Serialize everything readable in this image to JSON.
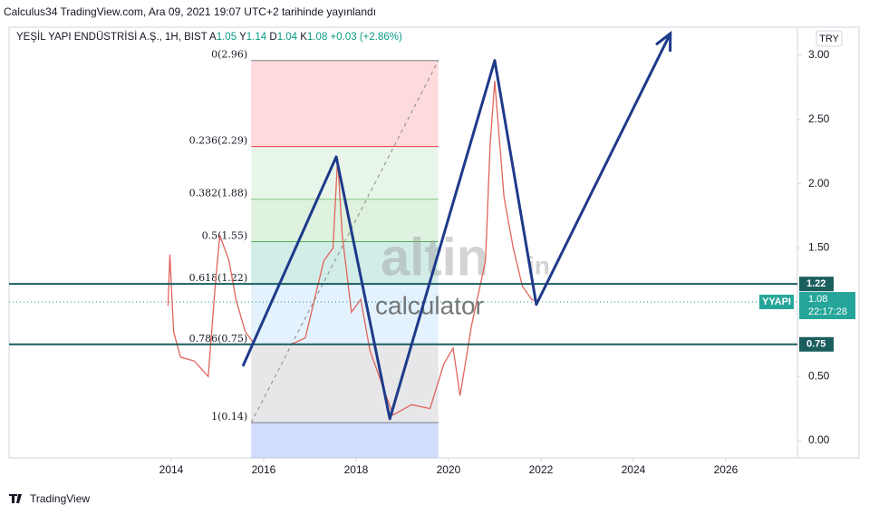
{
  "header": {
    "published": "Calculus34 TradingView.com, Ara 09, 2021 19:07 UTC+2 tarihinde yayınlandı",
    "footer": "TradingView"
  },
  "chart_data": {
    "type": "line",
    "symbol": "YEŞİL YAPI ENDÜSTRİSİ A.Ş., 1H, BIST",
    "ohlc": [
      {
        "key": "A",
        "value": 1.05
      },
      {
        "key": "Y",
        "value": 1.14
      },
      {
        "key": "D",
        "value": 1.04
      },
      {
        "key": "K",
        "value": 1.08
      }
    ],
    "change": "+0.03 (+2.86%)",
    "currency": "TRY",
    "countdown": "22:17:28",
    "series": [
      {
        "name": "YYAPI",
        "color": "#e0645c",
        "x": [
          2013.93,
          2013.97,
          2014.05,
          2014.2,
          2014.5,
          2014.8,
          2014.95,
          2015.05,
          2015.25,
          2015.4,
          2015.6,
          2015.8,
          2016.2,
          2016.6,
          2016.9,
          2017.1,
          2017.3,
          2017.5,
          2017.6,
          2017.7,
          2017.9,
          2018.1,
          2018.3,
          2018.5,
          2018.8,
          2019.2,
          2019.6,
          2019.9,
          2020.1,
          2020.25,
          2020.5,
          2020.8,
          2020.9,
          2021.0,
          2021.2,
          2021.4,
          2021.6,
          2021.8,
          2021.95
        ],
        "values": [
          1.05,
          1.45,
          0.85,
          0.65,
          0.62,
          0.5,
          1.2,
          1.6,
          1.4,
          1.1,
          0.85,
          0.75,
          0.75,
          0.75,
          0.8,
          1.1,
          1.4,
          1.5,
          2.2,
          1.6,
          1.0,
          1.1,
          0.7,
          0.5,
          0.2,
          0.28,
          0.25,
          0.6,
          0.72,
          0.35,
          0.9,
          1.4,
          2.3,
          2.8,
          1.9,
          1.5,
          1.2,
          1.1,
          1.08
        ]
      }
    ],
    "fib": {
      "x": [
        2015.73,
        2019.78
      ],
      "levels": [
        {
          "label": "0(2.96)",
          "value": 2.96,
          "color": "#787b86"
        },
        {
          "label": "0.236(2.29)",
          "value": 2.29,
          "color": "#f23645"
        },
        {
          "label": "0.382(1.88)",
          "value": 1.88,
          "color": "#81c784"
        },
        {
          "label": "0.5(1.55)",
          "value": 1.55,
          "color": "#4caf50"
        },
        {
          "label": "0.618(1.22)",
          "value": 1.22,
          "color": "#089981"
        },
        {
          "label": "0.786(0.75)",
          "value": 0.75,
          "color": "#64b5f6"
        },
        {
          "label": "1(0.14)",
          "value": 0.14,
          "color": "#787b86"
        }
      ]
    },
    "hlines": [
      1.22,
      0.75
    ],
    "hline_color": "#1b5e5e",
    "zigzag": {
      "color": "#1e3a8a",
      "x": [
        2015.55,
        2017.57,
        2018.73,
        2021.0,
        2021.9,
        2024.8
      ],
      "values": [
        0.58,
        2.21,
        0.17,
        2.96,
        1.06,
        3.17
      ]
    },
    "watermark": {
      "brand": "altin",
      "suffix": "in",
      "sub": "calculator"
    },
    "xlim": [
      2010.49,
      2027.55
    ],
    "xticks": [
      2014,
      2016,
      2018,
      2020,
      2022,
      2024,
      2026
    ],
    "ylim": [
      -0.134,
      3.219
    ],
    "yticks": [
      {
        "value": 0,
        "label": "0.00"
      },
      {
        "value": 0.5,
        "label": "0.50"
      },
      {
        "value": 1.5,
        "label": "1.50"
      },
      {
        "value": 2,
        "label": "2.00"
      },
      {
        "value": 2.5,
        "label": "2.50"
      },
      {
        "value": 3,
        "label": "3.00"
      }
    ]
  }
}
